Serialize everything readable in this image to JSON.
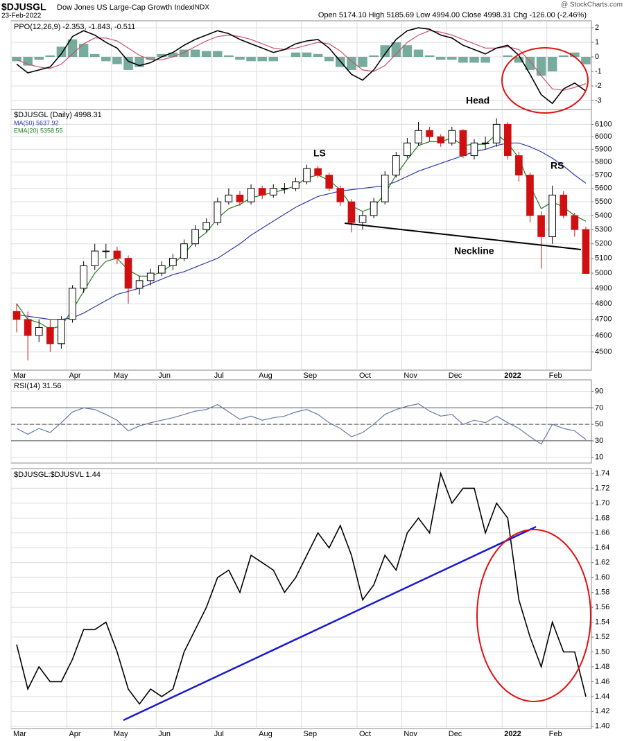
{
  "header": {
    "symbol": "$DJUSGL",
    "name": "Dow Jones US Large-Cap Growth Index",
    "exchange": "INDX",
    "date": "23-Feb-2022",
    "quote": "Open 5174.10 High 5185.69 Low 4994.00 Close 4998.31 Chg -126.00 (-2.46%)",
    "source": "@ StockCharts.com"
  },
  "chart_data": [
    {
      "type": "line",
      "label": "PPO(12,26,9) -2.353, -1.843, -0.511",
      "ylim": [
        -3.62,
        2.48
      ],
      "yticks": [
        2,
        1,
        0,
        -1,
        -2,
        -3
      ],
      "grid": true,
      "series": [
        {
          "style": "histogram",
          "color": "#5f9c8c",
          "values": [
            -0.3,
            -0.6,
            -0.2,
            0.1,
            0.7,
            1.2,
            0.9,
            0.2,
            -0.3,
            -0.5,
            -0.9,
            -0.7,
            -0.2,
            0.2,
            0.3,
            0.5,
            0.5,
            0.4,
            0.4,
            0.1,
            -0.2,
            -0.3,
            -0.3,
            -0.3,
            0.0,
            0.3,
            0.3,
            0.2,
            -0.3,
            -0.7,
            -0.9,
            -0.7,
            0.1,
            0.8,
            1.0,
            0.8,
            0.5,
            0.1,
            -0.2,
            -0.2,
            -0.4,
            -0.4,
            -0.4,
            0.0,
            0.1,
            -0.4,
            -0.9,
            -1.3,
            -1.0,
            0.1,
            0.3,
            -0.511
          ]
        },
        {
          "style": "line",
          "color": "#c8506a",
          "values": [
            -0.2,
            -0.5,
            -0.7,
            -0.8,
            -0.5,
            0.2,
            0.9,
            1.3,
            1.3,
            1.1,
            0.6,
            0.1,
            -0.2,
            -0.2,
            0.0,
            0.3,
            0.7,
            1.1,
            1.4,
            1.5,
            1.4,
            1.2,
            0.9,
            0.6,
            0.5,
            0.6,
            0.8,
            1.0,
            0.9,
            0.4,
            -0.3,
            -0.9,
            -1.0,
            -0.6,
            0.2,
            1.0,
            1.5,
            1.8,
            1.7,
            1.5,
            1.2,
            0.9,
            0.6,
            0.6,
            0.7,
            0.5,
            -0.3,
            -1.3,
            -2.2,
            -2.3,
            -2.1,
            -1.843
          ]
        },
        {
          "style": "line",
          "color": "#000000",
          "values": [
            -0.5,
            -1.1,
            -0.9,
            -0.7,
            0.2,
            1.4,
            1.8,
            1.5,
            1.0,
            0.6,
            -0.3,
            -0.6,
            -0.4,
            0.0,
            0.3,
            0.8,
            1.2,
            1.5,
            1.8,
            1.6,
            1.2,
            0.9,
            0.6,
            0.3,
            0.5,
            0.9,
            1.1,
            1.2,
            0.6,
            -0.3,
            -1.2,
            -1.6,
            -0.9,
            0.2,
            1.2,
            1.8,
            2.0,
            1.9,
            1.5,
            1.3,
            0.8,
            0.5,
            0.2,
            0.6,
            0.8,
            0.1,
            -1.2,
            -2.6,
            -3.2,
            -2.2,
            -1.8,
            -2.353
          ]
        }
      ]
    },
    {
      "type": "candlestick",
      "log": true,
      "ylim": [
        4392,
        6222
      ],
      "yticks": [
        4500,
        4600,
        4700,
        4800,
        4900,
        5000,
        5100,
        5200,
        5300,
        5400,
        5500,
        5600,
        5700,
        5800,
        5900,
        6000,
        6100
      ],
      "grid": true,
      "categories": [
        "Mar",
        null,
        null,
        null,
        null,
        "Apr",
        null,
        null,
        null,
        "May",
        null,
        null,
        null,
        "Jun",
        null,
        null,
        null,
        null,
        "Jul",
        null,
        null,
        null,
        "Aug",
        null,
        null,
        null,
        "Sep",
        null,
        null,
        null,
        null,
        "Oct",
        null,
        null,
        null,
        "Nov",
        null,
        null,
        null,
        "Dec",
        null,
        null,
        null,
        null,
        "2022",
        null,
        null,
        null,
        "Feb",
        null,
        null,
        null
      ],
      "up_color": "#000000",
      "down_color": "#d01010",
      "ohlc": {
        "name": "$DJUSGL (Daily) 4998.31",
        "open": [
          4750,
          4700,
          4600,
          4650,
          4550,
          4700,
          4900,
          5050,
          5150,
          5150,
          5100,
          4900,
          4950,
          5000,
          5050,
          5100,
          5200,
          5300,
          5350,
          5500,
          5550,
          5500,
          5600,
          5550,
          5600,
          5600,
          5650,
          5750,
          5700,
          5600,
          5500,
          5350,
          5400,
          5500,
          5700,
          5850,
          5950,
          6050,
          6000,
          5950,
          6050,
          5850,
          5950,
          5950,
          6100,
          5850,
          5700,
          5400,
          5250,
          5550,
          5400,
          5300
        ],
        "high": [
          4800,
          4750,
          4700,
          4700,
          4720,
          4920,
          5080,
          5200,
          5200,
          5180,
          5120,
          4980,
          5030,
          5080,
          5130,
          5230,
          5330,
          5380,
          5530,
          5600,
          5580,
          5630,
          5620,
          5630,
          5640,
          5680,
          5780,
          5770,
          5720,
          5620,
          5520,
          5430,
          5530,
          5730,
          5880,
          5990,
          6120,
          6080,
          6020,
          6080,
          6060,
          5980,
          6000,
          6150,
          6120,
          5880,
          5720,
          5430,
          5620,
          5580,
          5420,
          5320
        ],
        "low": [
          4620,
          4450,
          4560,
          4500,
          4520,
          4680,
          4870,
          5020,
          5100,
          5060,
          4800,
          4860,
          4920,
          4980,
          5020,
          5080,
          5180,
          5280,
          5330,
          5480,
          5470,
          5480,
          5520,
          5530,
          5560,
          5580,
          5630,
          5680,
          5580,
          5470,
          5280,
          5300,
          5380,
          5480,
          5680,
          5830,
          5930,
          5960,
          5920,
          5930,
          5830,
          5820,
          5900,
          5920,
          5820,
          5650,
          5350,
          5030,
          5200,
          5380,
          5250,
          4994
        ],
        "close": [
          4700,
          4600,
          4650,
          4550,
          4700,
          4900,
          5050,
          5150,
          5150,
          5100,
          4900,
          4950,
          5000,
          5050,
          5100,
          5200,
          5300,
          5350,
          5500,
          5550,
          5500,
          5600,
          5550,
          5600,
          5600,
          5650,
          5750,
          5700,
          5600,
          5500,
          5350,
          5400,
          5500,
          5700,
          5850,
          5950,
          6050,
          6000,
          5950,
          6050,
          5850,
          5950,
          5950,
          6100,
          5850,
          5700,
          5400,
          5250,
          5550,
          5400,
          5300,
          4998
        ]
      },
      "series": [
        {
          "name": "MA(50) 5637.92",
          "color": "#2b3aa8",
          "values": [
            4730,
            4720,
            4710,
            4700,
            4700,
            4710,
            4740,
            4780,
            4820,
            4860,
            4880,
            4900,
            4930,
            4960,
            4990,
            5010,
            5040,
            5070,
            5100,
            5150,
            5200,
            5260,
            5310,
            5360,
            5410,
            5460,
            5500,
            5540,
            5560,
            5580,
            5590,
            5600,
            5610,
            5620,
            5650,
            5690,
            5730,
            5760,
            5790,
            5820,
            5850,
            5880,
            5900,
            5930,
            5950,
            5950,
            5920,
            5880,
            5830,
            5770,
            5700,
            5638
          ]
        },
        {
          "name": "EMA(20) 5358.55",
          "color": "#1f7a1f",
          "values": [
            4800,
            4700,
            4680,
            4640,
            4660,
            4760,
            4880,
            5000,
            5080,
            5100,
            5020,
            4980,
            4980,
            5010,
            5060,
            5130,
            5220,
            5280,
            5380,
            5450,
            5480,
            5530,
            5550,
            5570,
            5590,
            5620,
            5680,
            5700,
            5660,
            5590,
            5470,
            5430,
            5460,
            5560,
            5700,
            5820,
            5930,
            5960,
            5960,
            5990,
            5930,
            5940,
            5940,
            6020,
            5950,
            5830,
            5620,
            5450,
            5500,
            5460,
            5400,
            5359
          ]
        }
      ],
      "annotations": [
        "Head",
        "LS",
        "RS",
        "Neckline"
      ]
    },
    {
      "type": "line",
      "label": "RSI(14) 31.56",
      "ylim": [
        3,
        104
      ],
      "yticks": [
        90,
        70,
        50,
        30,
        10
      ],
      "grid": true,
      "levels": [
        70,
        50,
        30
      ],
      "level_styles": [
        "solid",
        "dashed",
        "solid"
      ],
      "series": [
        {
          "style": "line",
          "color": "#6677aa",
          "values": [
            45,
            38,
            45,
            40,
            52,
            65,
            70,
            68,
            62,
            55,
            42,
            48,
            52,
            55,
            58,
            62,
            66,
            68,
            74,
            65,
            56,
            60,
            55,
            58,
            60,
            65,
            68,
            62,
            52,
            45,
            35,
            40,
            50,
            62,
            68,
            72,
            75,
            66,
            60,
            62,
            50,
            55,
            52,
            60,
            52,
            45,
            35,
            26,
            50,
            45,
            42,
            31.56
          ]
        }
      ]
    },
    {
      "type": "line",
      "label": "$DJUSGL:$DJUSVL 1.44",
      "ylim": [
        1.397,
        1.7465
      ],
      "grid": true,
      "yticks": [
        {
          "value": 1.4,
          "label": "1.40"
        },
        1.42,
        1.44,
        1.46,
        1.48,
        {
          "value": 1.5,
          "label": "1.50"
        },
        1.52,
        1.54,
        1.56,
        1.58,
        {
          "value": 1.6,
          "label": "1.60"
        },
        1.62,
        1.64,
        1.66,
        1.68,
        {
          "value": 1.7,
          "label": "1.70"
        },
        1.72,
        1.74
      ],
      "categories": [
        "Mar",
        null,
        null,
        null,
        null,
        "Apr",
        null,
        null,
        null,
        "May",
        null,
        null,
        null,
        "Jun",
        null,
        null,
        null,
        null,
        "Jul",
        null,
        null,
        null,
        "Aug",
        null,
        null,
        null,
        "Sep",
        null,
        null,
        null,
        null,
        "Oct",
        null,
        null,
        null,
        "Nov",
        null,
        null,
        null,
        "Dec",
        null,
        null,
        null,
        null,
        "2022",
        null,
        null,
        null,
        "Feb",
        null,
        null,
        null
      ],
      "series": [
        {
          "style": "line",
          "color": "#000000",
          "values": [
            1.51,
            1.45,
            1.48,
            1.46,
            1.46,
            1.49,
            1.53,
            1.53,
            1.54,
            1.5,
            1.45,
            1.43,
            1.45,
            1.44,
            1.45,
            1.5,
            1.53,
            1.56,
            1.6,
            1.61,
            1.58,
            1.63,
            1.62,
            1.61,
            1.58,
            1.6,
            1.63,
            1.66,
            1.64,
            1.67,
            1.63,
            1.57,
            1.59,
            1.63,
            1.61,
            1.66,
            1.68,
            1.66,
            1.74,
            1.7,
            1.72,
            1.72,
            1.66,
            1.7,
            1.68,
            1.57,
            1.52,
            1.48,
            1.54,
            1.5,
            1.5,
            1.44
          ]
        }
      ]
    }
  ]
}
